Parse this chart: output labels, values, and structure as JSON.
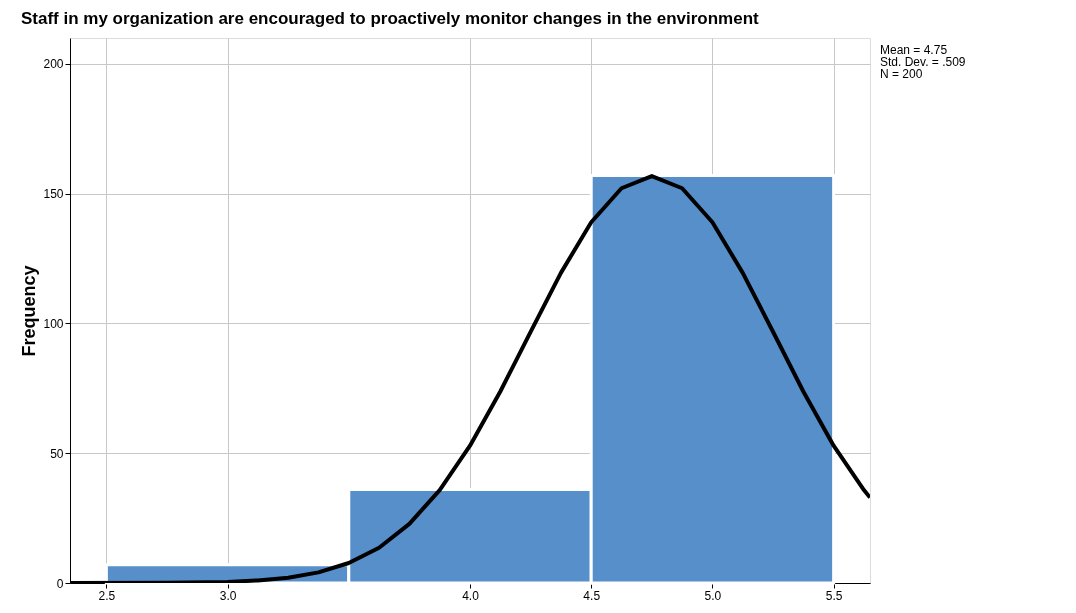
{
  "chart_data": {
    "type": "histogram",
    "title": "Staff in my organization are encouraged to proactively monitor changes in the environment",
    "ylabel": "Frequency",
    "bins": [
      2.5,
      3.5,
      4.5,
      5.5
    ],
    "values": [
      7,
      36,
      157
    ],
    "color": "#568fca",
    "series": [
      {
        "type": "line",
        "color": "#000000",
        "x": [
          2.35,
          2.75,
          3.0,
          3.125,
          3.25,
          3.375,
          3.5,
          3.625,
          3.75,
          3.875,
          4.0,
          4.125,
          4.25,
          4.375,
          4.5,
          4.625,
          4.75,
          4.875,
          5.0,
          5.125,
          5.25,
          5.375,
          5.5,
          5.625,
          5.65
        ],
        "values": [
          0,
          0.1,
          0.4,
          1,
          2,
          4.1,
          7.7,
          13.6,
          22.8,
          35.8,
          52.9,
          73.8,
          96.8,
          119.5,
          139,
          152.1,
          156.8,
          152.1,
          139,
          119.5,
          96.8,
          73.8,
          52.9,
          35.8,
          32.9
        ]
      }
    ],
    "xlim": [
      2.35,
      5.65
    ],
    "xticks": [
      2.5,
      {
        "value": 3,
        "label": "3.0"
      },
      {
        "value": 4,
        "label": "4.0"
      },
      4.5,
      {
        "value": 5,
        "label": "5.0"
      },
      5.5
    ],
    "ylim": [
      0,
      210
    ],
    "yticks": [
      0,
      50,
      100,
      150,
      200
    ],
    "grid": true,
    "annotations": [
      "Mean = 4.75",
      "Std. Dev. = .509",
      "N = 200"
    ]
  }
}
